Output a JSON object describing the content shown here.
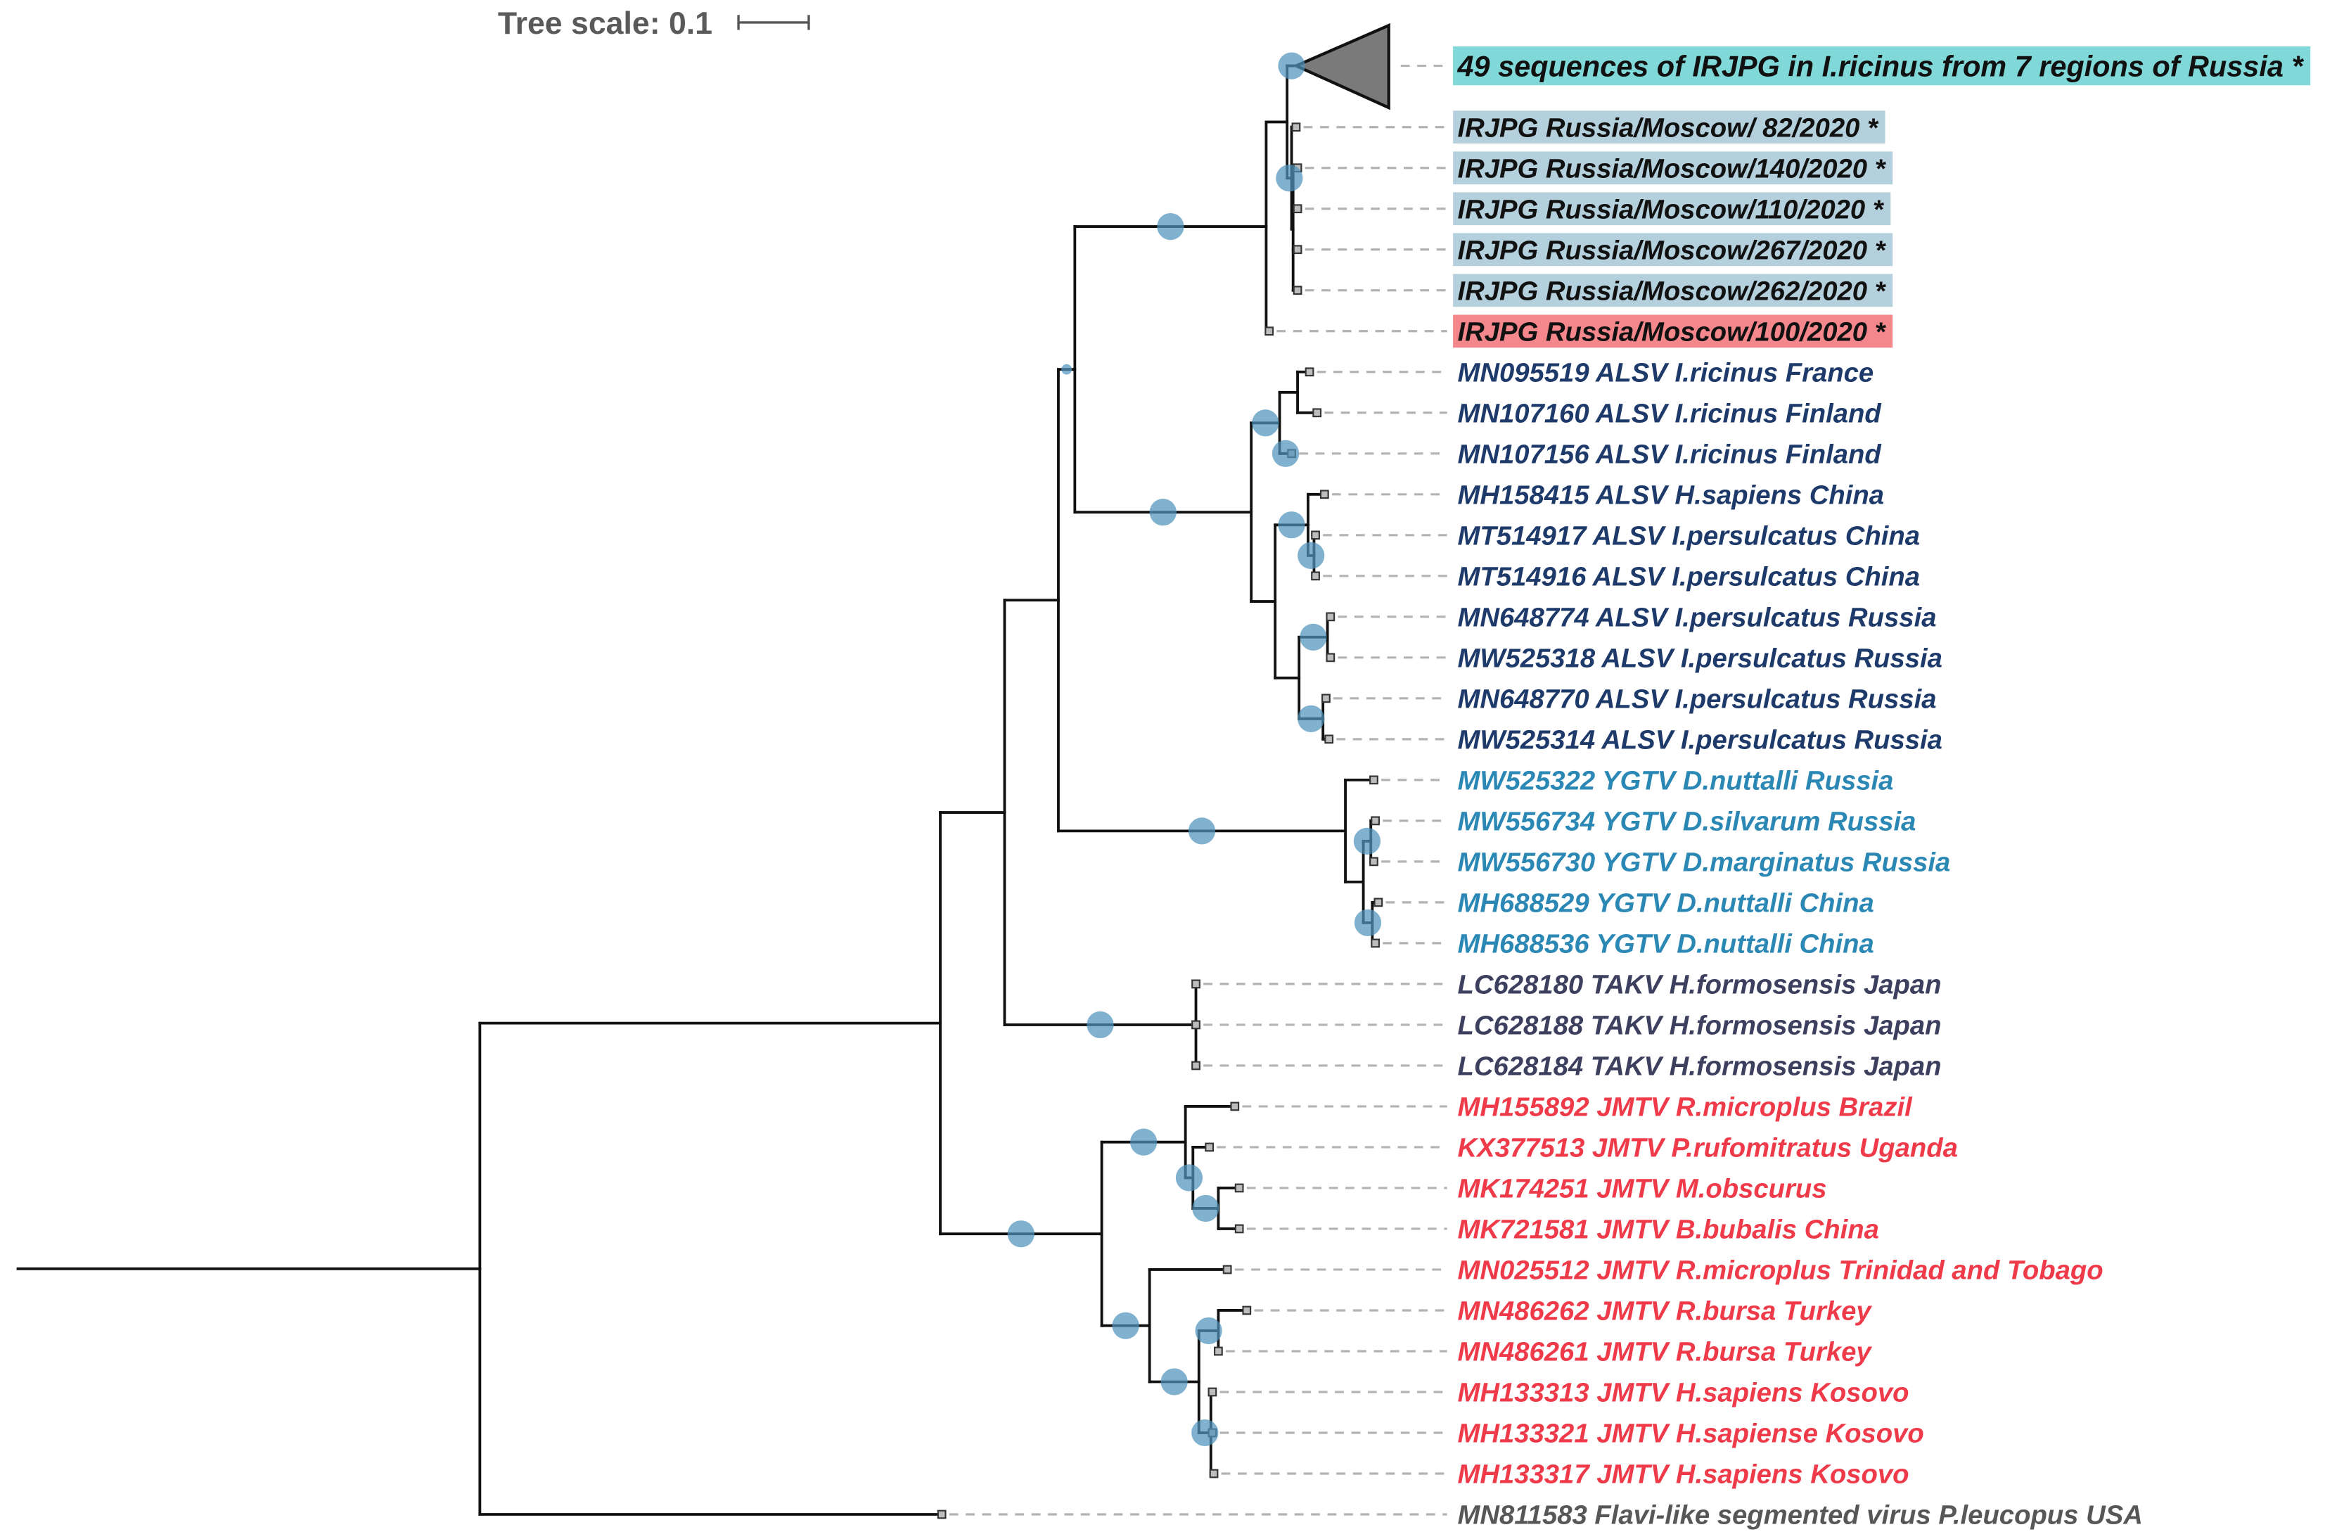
{
  "tree_scale": {
    "label": "Tree scale: 0.1"
  },
  "colors": {
    "branch": "#111111",
    "support_marker": "#4f93bd",
    "leader": "#b3b3b3",
    "collapsed_clade": "#7a7a7a",
    "tip_fill": "#bdbdbd",
    "tip_stroke": "#333333",
    "scale_bar": "#555555"
  },
  "leaves": [
    {
      "label": "49 sequences of IRJPG in I.ricinus from 7 regions of Russia *",
      "color": "#111111",
      "highlight": "#80d8d8"
    },
    {
      "label": "IRJPG Russia/Moscow/ 82/2020 *",
      "color": "#111111",
      "highlight": "#b5d0dd"
    },
    {
      "label": "IRJPG Russia/Moscow/140/2020 *",
      "color": "#111111",
      "highlight": "#b5d0dd"
    },
    {
      "label": "IRJPG Russia/Moscow/110/2020 *",
      "color": "#111111",
      "highlight": "#b5d0dd"
    },
    {
      "label": "IRJPG Russia/Moscow/267/2020 *",
      "color": "#111111",
      "highlight": "#b5d0dd"
    },
    {
      "label": "IRJPG Russia/Moscow/262/2020 *",
      "color": "#111111",
      "highlight": "#b5d0dd"
    },
    {
      "label": "IRJPG Russia/Moscow/100/2020 *",
      "color": "#111111",
      "highlight": "#f3878c"
    },
    {
      "label": "MN095519 ALSV I.ricinus France",
      "color": "#1d3a6a"
    },
    {
      "label": "MN107160 ALSV I.ricinus Finland",
      "color": "#1d3a6a"
    },
    {
      "label": "MN107156 ALSV I.ricinus Finland",
      "color": "#1d3a6a"
    },
    {
      "label": "MH158415 ALSV H.sapiens China",
      "color": "#1d3a6a"
    },
    {
      "label": "MT514917 ALSV I.persulcatus China",
      "color": "#1d3a6a"
    },
    {
      "label": "MT514916 ALSV I.persulcatus China",
      "color": "#1d3a6a"
    },
    {
      "label": "MN648774 ALSV I.persulcatus Russia",
      "color": "#1d3a6a"
    },
    {
      "label": "MW525318 ALSV I.persulcatus Russia",
      "color": "#1d3a6a"
    },
    {
      "label": "MN648770 ALSV I.persulcatus Russia",
      "color": "#1d3a6a"
    },
    {
      "label": "MW525314 ALSV I.persulcatus Russia",
      "color": "#1d3a6a"
    },
    {
      "label": "MW525322 YGTV D.nuttalli Russia",
      "color": "#2b88b5"
    },
    {
      "label": "MW556734 YGTV D.silvarum Russia",
      "color": "#2b88b5"
    },
    {
      "label": "MW556730 YGTV D.marginatus Russia",
      "color": "#2b88b5"
    },
    {
      "label": "MH688529 YGTV D.nuttalli China",
      "color": "#2b88b5"
    },
    {
      "label": "MH688536 YGTV D.nuttalli China",
      "color": "#2b88b5"
    },
    {
      "label": "LC628180 TAKV H.formosensis Japan",
      "color": "#3c3f5d"
    },
    {
      "label": "LC628188 TAKV H.formosensis Japan",
      "color": "#3c3f5d"
    },
    {
      "label": "LC628184 TAKV H.formosensis Japan",
      "color": "#3c3f5d"
    },
    {
      "label": "MH155892 JMTV R.microplus Brazil",
      "color": "#ef3a4a"
    },
    {
      "label": "KX377513 JMTV P.rufomitratus Uganda",
      "color": "#ef3a4a"
    },
    {
      "label": "MK174251 JMTV M.obscurus",
      "color": "#ef3a4a"
    },
    {
      "label": "MK721581 JMTV B.bubalis China",
      "color": "#ef3a4a"
    },
    {
      "label": "MN025512 JMTV R.microplus Trinidad and Tobago",
      "color": "#ef3a4a"
    },
    {
      "label": "MN486262 JMTV R.bursa Turkey",
      "color": "#ef3a4a"
    },
    {
      "label": "MN486261 JMTV R.bursa Turkey",
      "color": "#ef3a4a"
    },
    {
      "label": "MH133313 JMTV H.sapiens Kosovo",
      "color": "#ef3a4a"
    },
    {
      "label": "MH133321 JMTV H.sapiense Kosovo",
      "color": "#ef3a4a"
    },
    {
      "label": "MH133317 JMTV H.sapiens Kosovo",
      "color": "#ef3a4a"
    },
    {
      "label": "MN811583 Flavi-like segmented virus P.leucopus USA",
      "color": "#575757"
    }
  ]
}
